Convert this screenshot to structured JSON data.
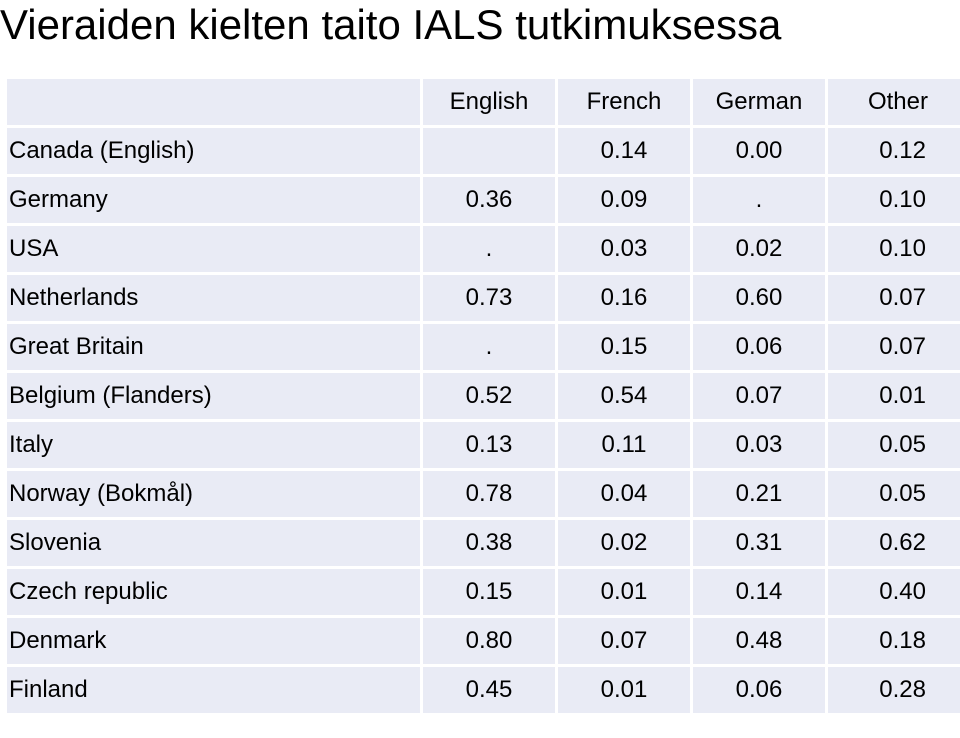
{
  "title": "Vieraiden kielten taito IALS tutkimuksessa",
  "table": {
    "columns": [
      "",
      "English",
      "French",
      "German",
      "Other"
    ],
    "rows": [
      {
        "country": "Canada (English)",
        "values": [
          "",
          "0.14",
          "0.00",
          "0.12"
        ]
      },
      {
        "country": "Germany",
        "values": [
          "0.36",
          "0.09",
          ".",
          "0.10"
        ]
      },
      {
        "country": "USA",
        "values": [
          ".",
          "0.03",
          "0.02",
          "0.10"
        ]
      },
      {
        "country": "Netherlands",
        "values": [
          "0.73",
          "0.16",
          "0.60",
          "0.07"
        ]
      },
      {
        "country": "Great Britain",
        "values": [
          ".",
          "0.15",
          "0.06",
          "0.07"
        ]
      },
      {
        "country": "Belgium (Flanders)",
        "values": [
          "0.52",
          "0.54",
          "0.07",
          "0.01"
        ]
      },
      {
        "country": "Italy",
        "values": [
          "0.13",
          "0.11",
          "0.03",
          "0.05"
        ]
      },
      {
        "country": "Norway (Bokmål)",
        "values": [
          "0.78",
          "0.04",
          "0.21",
          "0.05"
        ]
      },
      {
        "country": "Slovenia",
        "values": [
          "0.38",
          "0.02",
          "0.31",
          "0.62"
        ]
      },
      {
        "country": "Czech republic",
        "values": [
          "0.15",
          "0.01",
          "0.14",
          "0.40"
        ]
      },
      {
        "country": "Denmark",
        "values": [
          "0.80",
          "0.07",
          "0.48",
          "0.18"
        ]
      },
      {
        "country": "Finland",
        "values": [
          "0.45",
          "0.01",
          "0.06",
          "0.28"
        ]
      }
    ]
  },
  "colors": {
    "cell_background": "#e9ebf5",
    "text": "#000000"
  }
}
